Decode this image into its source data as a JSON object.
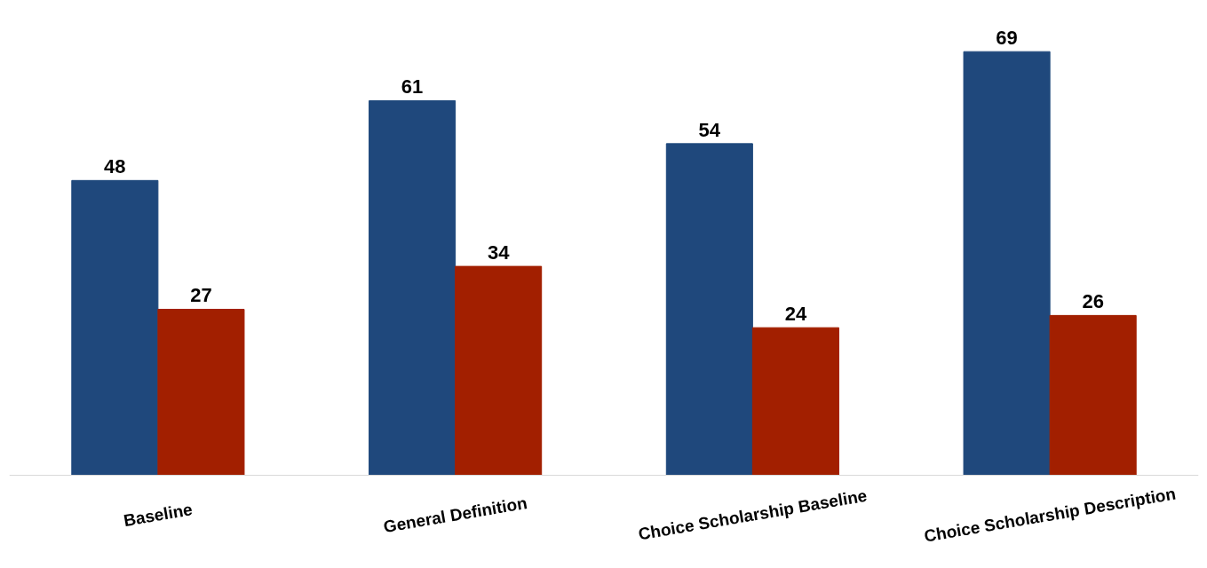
{
  "chart_data": {
    "type": "bar",
    "categories": [
      "Baseline",
      "General Definition",
      "Choice Scholarship Baseline",
      "Choice Scholarship Description"
    ],
    "series": [
      {
        "color": "#1f487c",
        "values": [
          48,
          61,
          54,
          69
        ]
      },
      {
        "color": "#a21f00",
        "values": [
          27,
          34,
          24,
          26
        ]
      }
    ],
    "data_labels": true
  }
}
